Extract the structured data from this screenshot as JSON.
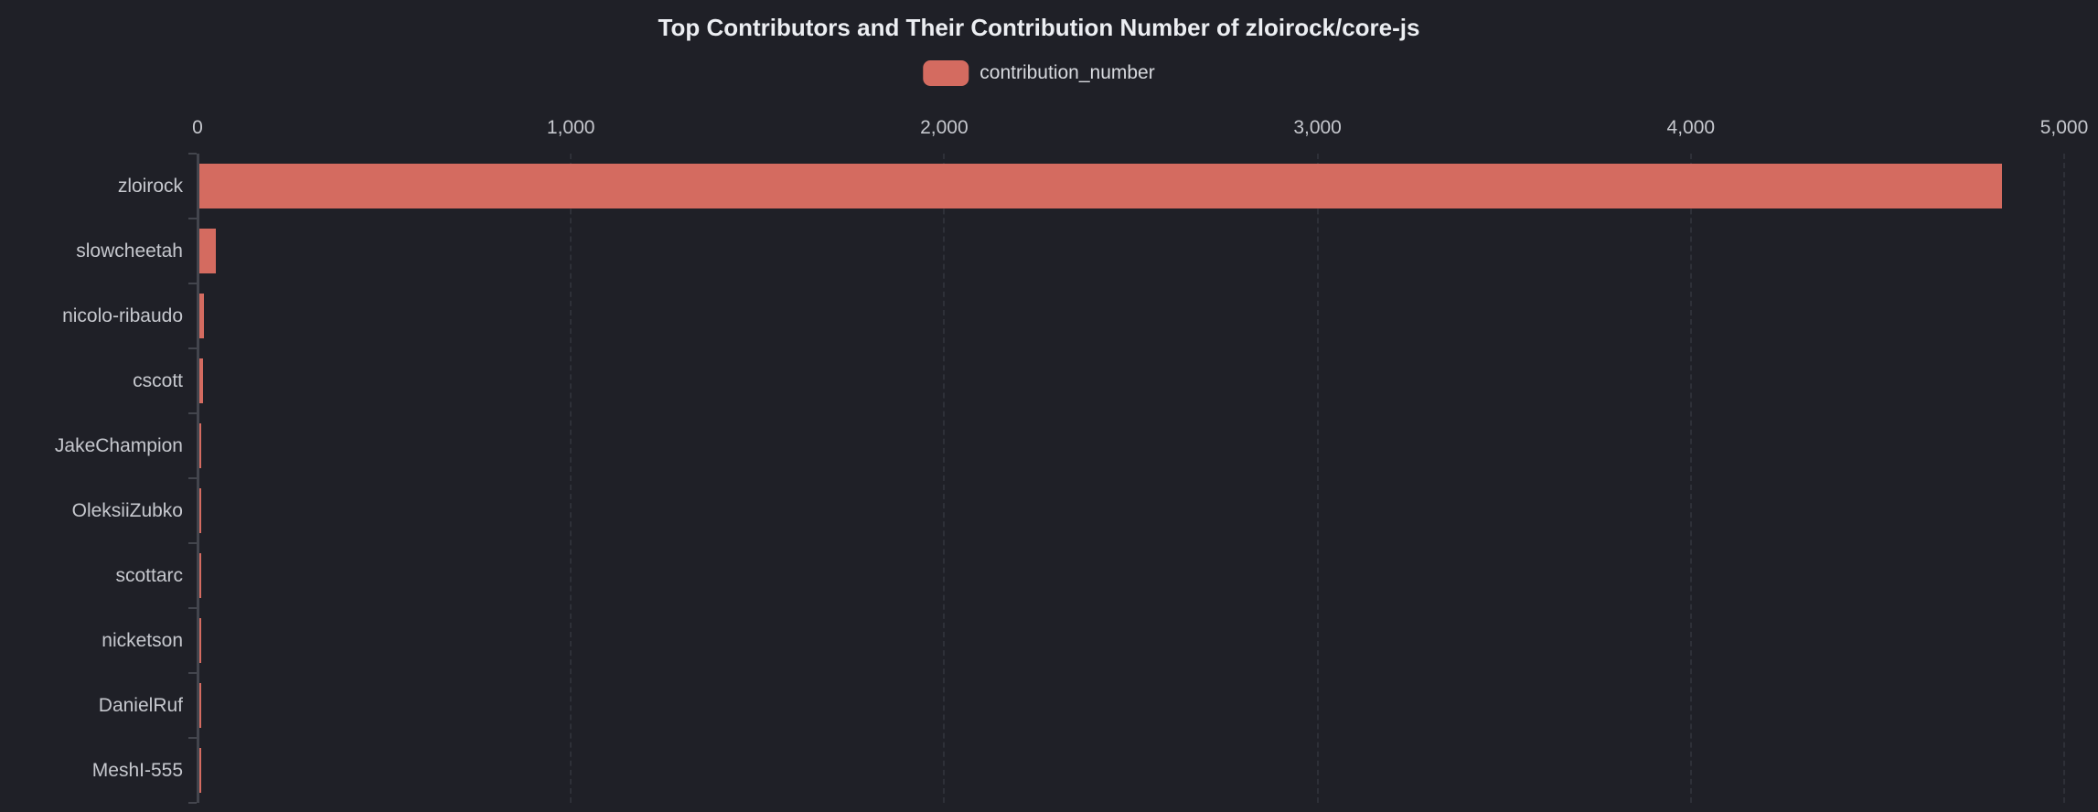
{
  "chart_data": {
    "type": "bar",
    "orientation": "horizontal",
    "title": "Top Contributors and Their Contribution Number of zloirock/core-js",
    "legend": [
      "contribution_number"
    ],
    "legend_position": "top-center",
    "categories": [
      "zloirock",
      "slowcheetah",
      "nicolo-ribaudo",
      "cscott",
      "JakeChampion",
      "OleksiiZubko",
      "scottarc",
      "nicketson",
      "DanielRuf",
      "MeshI-555"
    ],
    "series": [
      {
        "name": "contribution_number",
        "values": [
          4829,
          44,
          12,
          11,
          6,
          6,
          5,
          5,
          4,
          4
        ]
      }
    ],
    "xlabel": "",
    "ylabel": "",
    "xlim": [
      0,
      5000
    ],
    "x_ticks": [
      0,
      1000,
      2000,
      3000,
      4000,
      5000
    ],
    "x_tick_labels": [
      "0",
      "1,000",
      "2,000",
      "3,000",
      "4,000",
      "5,000"
    ],
    "grid": "vertical-dashed"
  },
  "colors": {
    "background": "#1f2027",
    "bar": "#d46b60",
    "title_text": "#eceef2",
    "legend_text": "#d8dadf",
    "axis_label": "#c6c8ce",
    "axis_line": "#43454d",
    "grid_line": "#2e3038"
  }
}
